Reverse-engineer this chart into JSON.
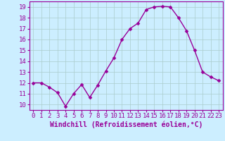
{
  "x": [
    0,
    1,
    2,
    3,
    4,
    5,
    6,
    7,
    8,
    9,
    10,
    11,
    12,
    13,
    14,
    15,
    16,
    17,
    18,
    19,
    20,
    21,
    22,
    23
  ],
  "y": [
    12.0,
    12.0,
    11.6,
    11.1,
    9.85,
    11.0,
    11.85,
    10.65,
    11.8,
    13.1,
    14.3,
    16.0,
    17.0,
    17.5,
    18.75,
    19.0,
    19.05,
    19.0,
    18.0,
    16.8,
    15.0,
    13.0,
    12.55,
    12.2
  ],
  "line_color": "#990099",
  "marker": "D",
  "marker_size": 2.5,
  "bg_color": "#cceeff",
  "grid_color": "#aacccc",
  "xlabel": "Windchill (Refroidissement éolien,°C)",
  "xlabel_color": "#990099",
  "ylim": [
    9.5,
    19.5
  ],
  "xlim": [
    -0.5,
    23.5
  ],
  "yticks": [
    10,
    11,
    12,
    13,
    14,
    15,
    16,
    17,
    18,
    19
  ],
  "xticks": [
    0,
    1,
    2,
    3,
    4,
    5,
    6,
    7,
    8,
    9,
    10,
    11,
    12,
    13,
    14,
    15,
    16,
    17,
    18,
    19,
    20,
    21,
    22,
    23
  ],
  "tick_color": "#990099",
  "tick_fontsize": 6.5,
  "xlabel_fontsize": 7.0,
  "line_width": 1.0
}
